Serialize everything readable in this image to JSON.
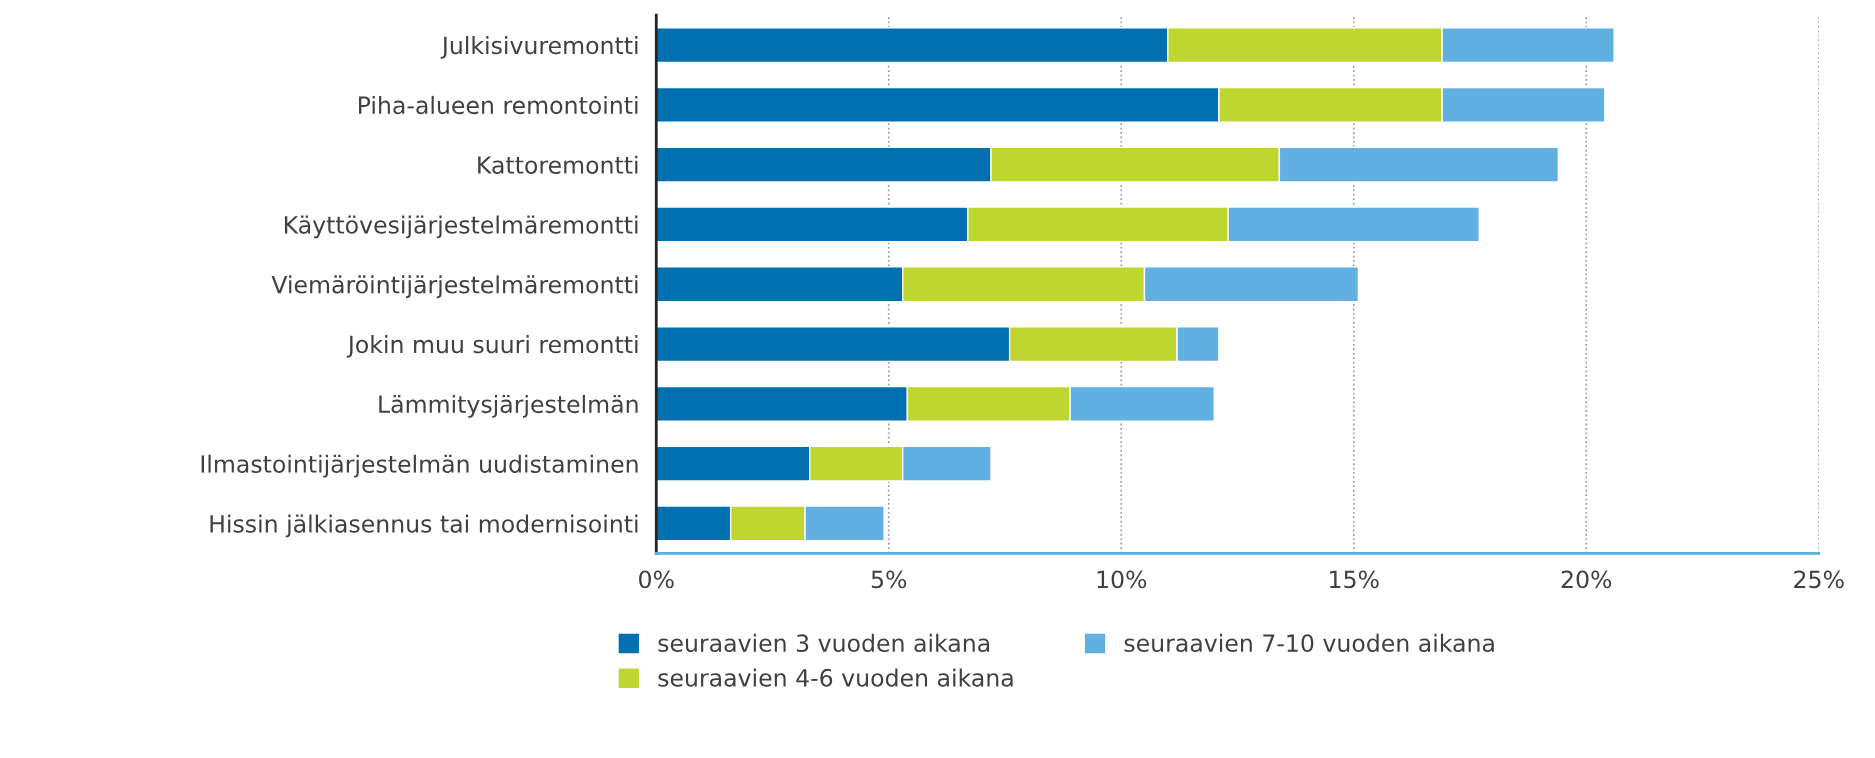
{
  "chart_data": {
    "type": "bar",
    "orientation": "horizontal",
    "stacked": true,
    "categories": [
      "Julkisivuremontti",
      "Piha-alueen remontointi",
      "Kattoremontti",
      "Käyttövesijärjestelmäremontti",
      "Viemäröintijärjestelmäremontti",
      "Jokin muu suuri remontti",
      "Lämmitysjärjestelmän",
      "Ilmastointijärjestelmän uudistaminen",
      "Hissin jälkiasennus tai modernisointi"
    ],
    "series": [
      {
        "name": "seuraavien 3 vuoden aikana",
        "color": "#0070b0",
        "values": [
          11.0,
          12.1,
          7.2,
          6.7,
          5.3,
          7.6,
          5.4,
          3.3,
          1.6
        ]
      },
      {
        "name": "seuraavien 4-6 vuoden aikana",
        "color": "#c0d630",
        "values": [
          5.9,
          4.8,
          6.2,
          5.6,
          5.2,
          3.6,
          3.5,
          2.0,
          1.6
        ]
      },
      {
        "name": "seuraavien 7-10 vuoden aikana",
        "color": "#62b0e2",
        "values": [
          3.7,
          3.5,
          6.0,
          5.4,
          4.6,
          0.9,
          3.1,
          1.9,
          1.7
        ]
      }
    ],
    "xlim": [
      0,
      25
    ],
    "xticks": [
      {
        "value": 0,
        "label": "0%"
      },
      {
        "value": 5,
        "label": "5%"
      },
      {
        "value": 10,
        "label": "10%"
      },
      {
        "value": 15,
        "label": "15%"
      },
      {
        "value": 20,
        "label": "20%"
      },
      {
        "value": 25,
        "label": "25%"
      }
    ],
    "grid": "x",
    "legend": "bottom"
  }
}
